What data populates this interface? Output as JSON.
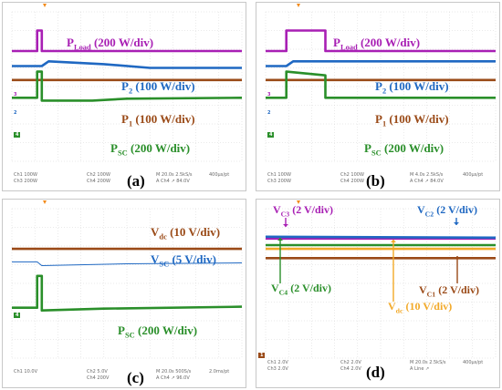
{
  "colors": {
    "purple": "#a81fb4",
    "blue": "#1f68c2",
    "brown": "#9a4a17",
    "green": "#2a8f2a",
    "orange": "#f2a928",
    "grid": "#d4d4d4"
  },
  "panels": {
    "a": {
      "letter": "(a)",
      "labels": {
        "pload": {
          "main": "P",
          "sub": "Load",
          "rest": " (200 W/div)"
        },
        "p2": {
          "main": "P",
          "sub": "2",
          "rest": " (100 W/div)"
        },
        "p1": {
          "main": "P",
          "sub": "1",
          "rest": " (100 W/div)"
        },
        "psc": {
          "main": "P",
          "sub": "SC",
          "rest": " (200 W/div)"
        }
      },
      "footer": {
        "l1": "Ch1    100W",
        "l2": "Ch3    200W",
        "m1": "Ch2    100W",
        "m2": "Ch4    200W",
        "r1": "M 20.0s 2.5kS/s",
        "r2": "A  Ch4  ↗  84.0V",
        "rr": "400μs/pt"
      },
      "markers": {
        "m3": "3",
        "m2": "2",
        "m4": "4"
      }
    },
    "b": {
      "letter": "(b)",
      "labels": {
        "pload": {
          "main": "P",
          "sub": "Load",
          "rest": " (200 W/div)"
        },
        "p2": {
          "main": "P",
          "sub": "2",
          "rest": " (100 W/div)"
        },
        "p1": {
          "main": "P",
          "sub": "1",
          "rest": " (100 W/div)"
        },
        "psc": {
          "main": "P",
          "sub": "SC",
          "rest": " (200 W/div)"
        }
      },
      "footer": {
        "l1": "Ch1    100W",
        "l2": "Ch3    200W",
        "m1": "Ch2    100W",
        "m2": "Ch4    200W",
        "r1": "M 4.0s 2.5kS/s",
        "r2": "A  Ch4  ↗  84.0V",
        "rr": "400μs/pt"
      },
      "markers": {
        "m3": "3",
        "m2": "2",
        "m4": "4"
      }
    },
    "c": {
      "letter": "(c)",
      "labels": {
        "vdc": {
          "main": "V",
          "sub": "dc",
          "rest": " (10 V/div)"
        },
        "vsc": {
          "main": "V",
          "sub": "SC",
          "rest": " (5 V/div)"
        },
        "psc": {
          "main": "P",
          "sub": "SC",
          "rest": " (200 W/div)"
        }
      },
      "footer": {
        "l1": "Ch1    10.0V",
        "l2": "",
        "m1": "Ch2    5.0V",
        "m2": "Ch4    200V",
        "r1": "M 20.0s 500S/s",
        "r2": "A  Ch4  ↗  96.0V",
        "rr": "2.0ms/pt"
      },
      "markers": {
        "m4": "4"
      }
    },
    "d": {
      "letter": "(d)",
      "labels": {
        "vc3": {
          "main": "V",
          "sub": "C3",
          "rest": " (2 V/div)"
        },
        "vc2": {
          "main": "V",
          "sub": "C2",
          "rest": " (2 V/div)"
        },
        "vc4": {
          "main": "V",
          "sub": "C4",
          "rest": " (2 V/div)"
        },
        "vc1": {
          "main": "V",
          "sub": "C1",
          "rest": " (2 V/div)"
        },
        "vdc": {
          "main": "V",
          "sub": "dc",
          "rest": " (10 V/div)"
        }
      },
      "footer": {
        "l1": "Ch1    2.0V",
        "l2": "Ch3    2.0V",
        "m1": "Ch2    2.0V",
        "m2": "Ch4    2.0V",
        "r1": "M 20.0s 2.5kS/s",
        "r2": "A  Line  ↗",
        "rr": "400μs/pt"
      },
      "markers": {
        "m1": "1"
      }
    }
  },
  "chart_data": [
    {
      "type": "line",
      "panel": "(a)",
      "xlim": [
        0,
        10
      ],
      "x_unit": "div",
      "series": [
        {
          "name": "PLoad",
          "points": [
            [
              0,
              5.9
            ],
            [
              1.1,
              5.9
            ],
            [
              1.1,
              7.0
            ],
            [
              1.3,
              7.0
            ],
            [
              1.3,
              5.9
            ],
            [
              10,
              5.9
            ]
          ]
        },
        {
          "name": "P2",
          "points": [
            [
              0,
              5.1
            ],
            [
              1.3,
              5.1
            ],
            [
              1.6,
              5.35
            ],
            [
              4,
              5.2
            ],
            [
              6,
              5.0
            ],
            [
              10,
              5.0
            ]
          ]
        },
        {
          "name": "P1",
          "points": [
            [
              0,
              4.35
            ],
            [
              10,
              4.35
            ]
          ]
        },
        {
          "name": "PSC",
          "points": [
            [
              0,
              3.4
            ],
            [
              1.1,
              3.4
            ],
            [
              1.1,
              4.8
            ],
            [
              1.3,
              4.8
            ],
            [
              1.3,
              3.25
            ],
            [
              3.5,
              3.25
            ],
            [
              5,
              3.35
            ],
            [
              10,
              3.4
            ]
          ]
        }
      ]
    },
    {
      "type": "line",
      "panel": "(b)",
      "xlim": [
        0,
        10
      ],
      "x_unit": "div",
      "series": [
        {
          "name": "PLoad",
          "points": [
            [
              0,
              5.9
            ],
            [
              0.9,
              5.9
            ],
            [
              0.9,
              7.0
            ],
            [
              2.6,
              7.0
            ],
            [
              2.6,
              5.9
            ],
            [
              10,
              5.9
            ]
          ]
        },
        {
          "name": "P2",
          "points": [
            [
              0,
              5.1
            ],
            [
              0.9,
              5.1
            ],
            [
              1.2,
              5.35
            ],
            [
              10,
              5.35
            ]
          ]
        },
        {
          "name": "P1",
          "points": [
            [
              0,
              4.35
            ],
            [
              10,
              4.35
            ]
          ]
        },
        {
          "name": "PSC",
          "points": [
            [
              0,
              3.4
            ],
            [
              0.9,
              3.4
            ],
            [
              0.9,
              4.8
            ],
            [
              2.6,
              4.6
            ],
            [
              2.6,
              3.4
            ],
            [
              10,
              3.4
            ]
          ]
        }
      ]
    },
    {
      "type": "line",
      "panel": "(c)",
      "xlim": [
        0,
        10
      ],
      "x_unit": "div",
      "series": [
        {
          "name": "Vdc",
          "points": [
            [
              0,
              5.85
            ],
            [
              10,
              5.85
            ]
          ]
        },
        {
          "name": "VSC",
          "points": [
            [
              0,
              5.15
            ],
            [
              1.1,
              5.15
            ],
            [
              1.3,
              4.95
            ],
            [
              5,
              5.05
            ],
            [
              10,
              5.1
            ]
          ]
        },
        {
          "name": "PSC",
          "points": [
            [
              0,
              2.7
            ],
            [
              1.1,
              2.7
            ],
            [
              1.1,
              4.4
            ],
            [
              1.3,
              4.4
            ],
            [
              1.3,
              2.55
            ],
            [
              4,
              2.65
            ],
            [
              10,
              2.75
            ]
          ]
        }
      ]
    },
    {
      "type": "line",
      "panel": "(d)",
      "xlim": [
        0,
        10
      ],
      "x_unit": "div",
      "series": [
        {
          "name": "VC3",
          "points": [
            [
              0,
              6.4
            ],
            [
              10,
              6.4
            ]
          ]
        },
        {
          "name": "VC2",
          "points": [
            [
              0,
              6.5
            ],
            [
              10,
              6.45
            ]
          ]
        },
        {
          "name": "VC4",
          "points": [
            [
              0,
              6.05
            ],
            [
              10,
              6.05
            ]
          ]
        },
        {
          "name": "VC1",
          "points": [
            [
              0,
              5.35
            ],
            [
              10,
              5.35
            ]
          ]
        },
        {
          "name": "Vdc",
          "points": [
            [
              0,
              5.85
            ],
            [
              10,
              5.85
            ]
          ]
        }
      ]
    }
  ]
}
